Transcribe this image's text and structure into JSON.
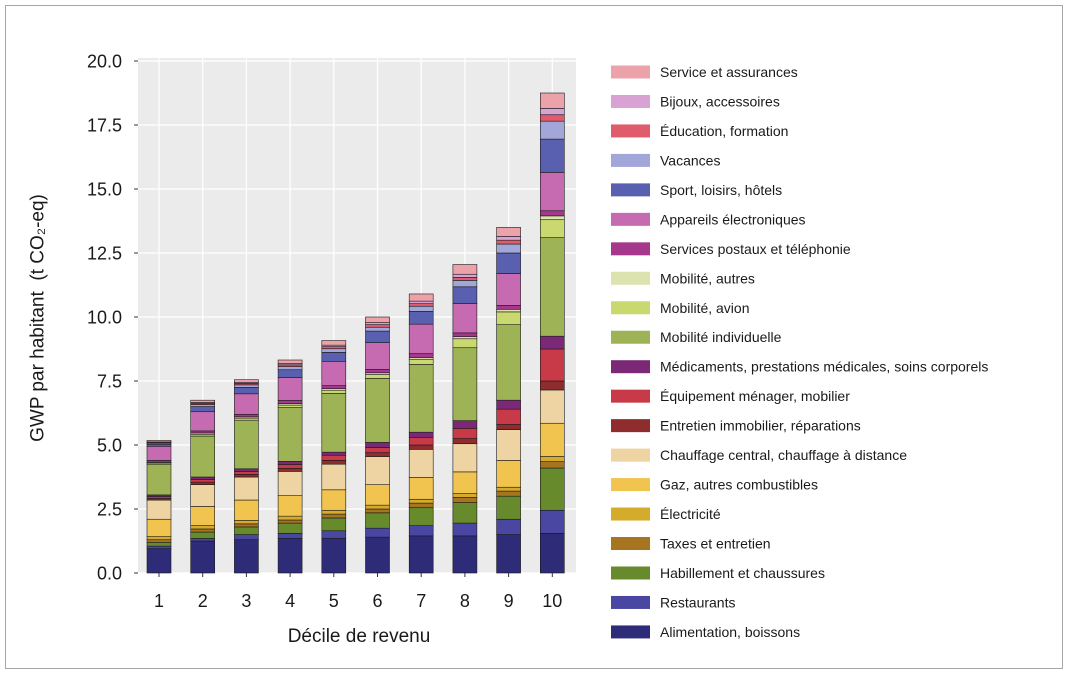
{
  "chart_data": {
    "type": "bar",
    "stacked": true,
    "title": "",
    "xlabel": "Décile de revenu",
    "ylabel": "GWP par habitant  (t CO₂-eq)",
    "ylim": [
      0,
      20
    ],
    "yticks": [
      "0.0",
      "2.5",
      "5.0",
      "7.5",
      "10.0",
      "12.5",
      "15.0",
      "17.5",
      "20.0"
    ],
    "grid": true,
    "legend_position": "right",
    "categories": [
      "1",
      "2",
      "3",
      "4",
      "5",
      "6",
      "7",
      "8",
      "9",
      "10"
    ],
    "series": [
      {
        "name": "Alimentation, boissons",
        "color": "#2e2b78",
        "values": [
          0.95,
          1.25,
          1.3,
          1.35,
          1.35,
          1.4,
          1.45,
          1.45,
          1.5,
          1.55
        ]
      },
      {
        "name": "Restaurants",
        "color": "#4a47a3",
        "values": [
          0.1,
          0.1,
          0.2,
          0.2,
          0.3,
          0.35,
          0.4,
          0.5,
          0.6,
          0.9
        ]
      },
      {
        "name": "Habillement et chaussures",
        "color": "#678a2c",
        "values": [
          0.15,
          0.25,
          0.3,
          0.4,
          0.5,
          0.6,
          0.7,
          0.8,
          0.9,
          1.65
        ]
      },
      {
        "name": "Taxes et entretien",
        "color": "#a7741f",
        "values": [
          0.1,
          0.12,
          0.12,
          0.12,
          0.15,
          0.15,
          0.18,
          0.2,
          0.2,
          0.25
        ]
      },
      {
        "name": "Électricité",
        "color": "#d4ab2b",
        "values": [
          0.12,
          0.13,
          0.13,
          0.15,
          0.15,
          0.15,
          0.15,
          0.15,
          0.15,
          0.2
        ]
      },
      {
        "name": "Gaz, autres combustibles",
        "color": "#f1c34f",
        "values": [
          0.68,
          0.75,
          0.8,
          0.8,
          0.8,
          0.8,
          0.85,
          0.85,
          1.05,
          1.3
        ]
      },
      {
        "name": "Chauffage central, chauffage à distance",
        "color": "#eed3a3",
        "values": [
          0.75,
          0.85,
          0.9,
          0.95,
          1.0,
          1.1,
          1.1,
          1.1,
          1.2,
          1.3
        ]
      },
      {
        "name": "Entretien immobilier, réparations",
        "color": "#8e2c2e",
        "values": [
          0.07,
          0.1,
          0.1,
          0.12,
          0.15,
          0.15,
          0.17,
          0.2,
          0.2,
          0.35
        ]
      },
      {
        "name": "Équipement ménager, mobilier",
        "color": "#c93a49",
        "values": [
          0.06,
          0.1,
          0.12,
          0.15,
          0.2,
          0.2,
          0.3,
          0.4,
          0.6,
          1.25
        ]
      },
      {
        "name": "Médicaments, prestations médicales, soins corporels",
        "color": "#7b2977",
        "values": [
          0.07,
          0.1,
          0.1,
          0.12,
          0.12,
          0.2,
          0.2,
          0.3,
          0.35,
          0.5
        ]
      },
      {
        "name": "Mobilité individuelle",
        "color": "#9eb355",
        "values": [
          1.2,
          1.6,
          1.9,
          2.1,
          2.3,
          2.5,
          2.65,
          2.85,
          2.95,
          3.85
        ]
      },
      {
        "name": "Mobilité, avion",
        "color": "#c9d96f",
        "values": [
          0.05,
          0.07,
          0.08,
          0.1,
          0.12,
          0.15,
          0.2,
          0.35,
          0.5,
          0.7
        ]
      },
      {
        "name": "Mobilité, autres",
        "color": "#dde3ae",
        "values": [
          0.03,
          0.05,
          0.05,
          0.06,
          0.06,
          0.07,
          0.07,
          0.08,
          0.1,
          0.15
        ]
      },
      {
        "name": "Services postaux et téléphonie",
        "color": "#a5388d",
        "values": [
          0.07,
          0.08,
          0.1,
          0.12,
          0.12,
          0.13,
          0.15,
          0.15,
          0.15,
          0.2
        ]
      },
      {
        "name": "Appareils électroniques",
        "color": "#c66bb2",
        "values": [
          0.55,
          0.75,
          0.8,
          0.9,
          0.95,
          1.05,
          1.15,
          1.15,
          1.25,
          1.5
        ]
      },
      {
        "name": "Sport, loisirs, hôtels",
        "color": "#5a60b0",
        "values": [
          0.08,
          0.2,
          0.25,
          0.3,
          0.35,
          0.45,
          0.5,
          0.65,
          0.8,
          1.3
        ]
      },
      {
        "name": "Vacances",
        "color": "#a2a6d8",
        "values": [
          0.04,
          0.08,
          0.1,
          0.12,
          0.14,
          0.15,
          0.2,
          0.25,
          0.35,
          0.7
        ]
      },
      {
        "name": "Éducation, formation",
        "color": "#e05c6c",
        "values": [
          0.03,
          0.05,
          0.06,
          0.07,
          0.08,
          0.1,
          0.1,
          0.12,
          0.15,
          0.25
        ]
      },
      {
        "name": "Bijoux, accessoires",
        "color": "#d8a2d3",
        "values": [
          0.02,
          0.03,
          0.04,
          0.05,
          0.06,
          0.08,
          0.1,
          0.12,
          0.15,
          0.25
        ]
      },
      {
        "name": "Service et assurances",
        "color": "#eca2a9",
        "values": [
          0.06,
          0.09,
          0.1,
          0.14,
          0.18,
          0.22,
          0.28,
          0.38,
          0.35,
          0.6
        ]
      }
    ]
  }
}
